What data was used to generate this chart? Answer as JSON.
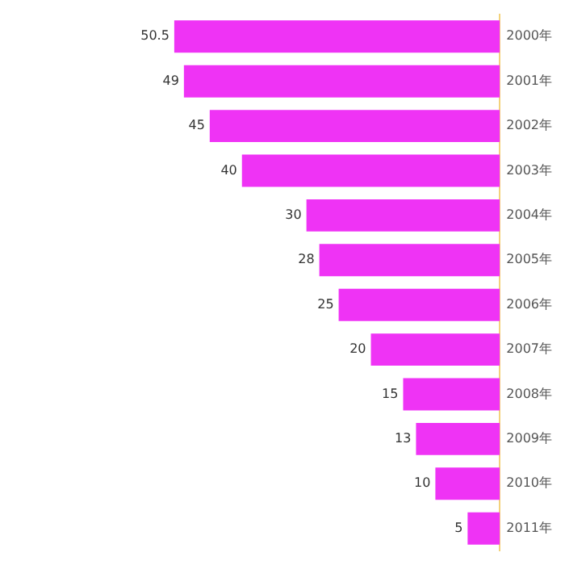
{
  "chart_data": {
    "type": "bar",
    "orientation": "horizontal",
    "categories": [
      "2000年",
      "2001年",
      "2002年",
      "2003年",
      "2004年",
      "2005年",
      "2006年",
      "2007年",
      "2008年",
      "2009年",
      "2010年",
      "2011年"
    ],
    "values": [
      50.5,
      49,
      45,
      40,
      30,
      28,
      25,
      20,
      15,
      13,
      10,
      5
    ],
    "color": "#ef33f5",
    "data_labels": true,
    "tick_labels": "y",
    "legend": false
  }
}
